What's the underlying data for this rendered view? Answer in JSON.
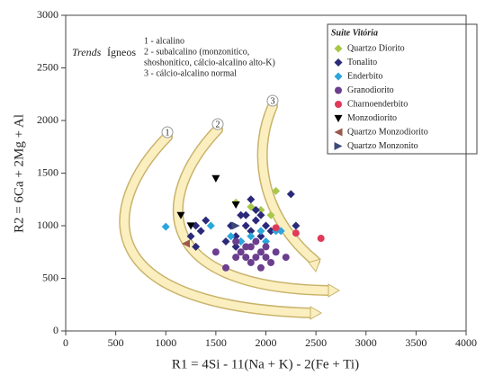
{
  "chart_data": {
    "type": "scatter",
    "x_label": "R1 = 4Si - 11(Na + K) - 2(Fe + Ti)",
    "y_label": "R2 = 6Ca + 2Mg + Al",
    "xlim": [
      0,
      4000
    ],
    "ylim": [
      0,
      3000
    ],
    "xticks": [
      0,
      500,
      1000,
      1500,
      2000,
      2500,
      3000,
      3500,
      4000
    ],
    "yticks": [
      0,
      500,
      1000,
      1500,
      2000,
      2500,
      3000
    ],
    "legend_title": "Suite Vitória",
    "legend_position": "upper right",
    "annotations": {
      "trends": "Trends",
      "igneos": "Ígneos",
      "lines": [
        "1 - alcalino",
        "2 - subalcalino (monzonitico,",
        "shoshonitico, cálcio-alcalino alto-K)",
        "3 - cálcio-alcalino normal"
      ],
      "curve_labels": [
        "1",
        "2",
        "3"
      ]
    },
    "series": [
      {
        "name": "Quartzo Diorito",
        "color": "#a8c84a",
        "marker": "diamond",
        "x": [
          1700,
          1850,
          1950,
          2100,
          2050
        ],
        "values": [
          1220,
          1180,
          1150,
          1330,
          1100
        ]
      },
      {
        "name": "Tonalito",
        "color": "#2b2a7a",
        "marker": "diamond",
        "x": [
          1300,
          1400,
          1350,
          1250,
          1300,
          1650,
          1700,
          1750,
          1800,
          1850,
          1900,
          1950,
          2000,
          1850,
          1900,
          2050,
          2250,
          2300,
          1600,
          1750,
          1950,
          1800,
          1700
        ],
        "values": [
          1000,
          1050,
          950,
          900,
          800,
          1000,
          900,
          1100,
          1000,
          950,
          1050,
          1100,
          1000,
          1250,
          1150,
          950,
          1300,
          1000,
          850,
          850,
          900,
          1100,
          800
        ]
      },
      {
        "name": "Enderbito",
        "color": "#2ba6dc",
        "marker": "diamond",
        "x": [
          1000,
          1450,
          1650,
          1750,
          2100,
          2150,
          2000,
          1850,
          1950
        ],
        "values": [
          990,
          1000,
          900,
          850,
          950,
          950,
          850,
          900,
          950
        ]
      },
      {
        "name": "Granodiorito",
        "color": "#6b3e8e",
        "marker": "circle",
        "x": [
          1500,
          1600,
          1700,
          1750,
          1800,
          1850,
          1900,
          1950,
          2000,
          2050,
          2100,
          2000,
          1850,
          1950,
          1700,
          1800,
          2200,
          1900
        ],
        "values": [
          750,
          600,
          700,
          750,
          800,
          650,
          700,
          750,
          700,
          650,
          750,
          800,
          800,
          600,
          850,
          700,
          700,
          850
        ]
      },
      {
        "name": "Charnoenderbito",
        "color": "#e03a5a",
        "marker": "circle",
        "x": [
          2100,
          2300,
          2550
        ],
        "values": [
          980,
          930,
          880
        ]
      },
      {
        "name": "Monzodiorito",
        "color": "#000000",
        "marker": "triangle-down",
        "x": [
          1150,
          1500,
          1250,
          1700
        ],
        "values": [
          1100,
          1450,
          1000,
          1200
        ]
      },
      {
        "name": "Quartzo Monzodiorito",
        "color": "#9a5a4a",
        "marker": "triangle-left",
        "x": [
          1200
        ],
        "values": [
          830
        ]
      },
      {
        "name": "Quartzo Monzonito",
        "color": "#3c4a78",
        "marker": "triangle-right",
        "x": [
          1700
        ],
        "values": [
          1000
        ]
      }
    ]
  }
}
